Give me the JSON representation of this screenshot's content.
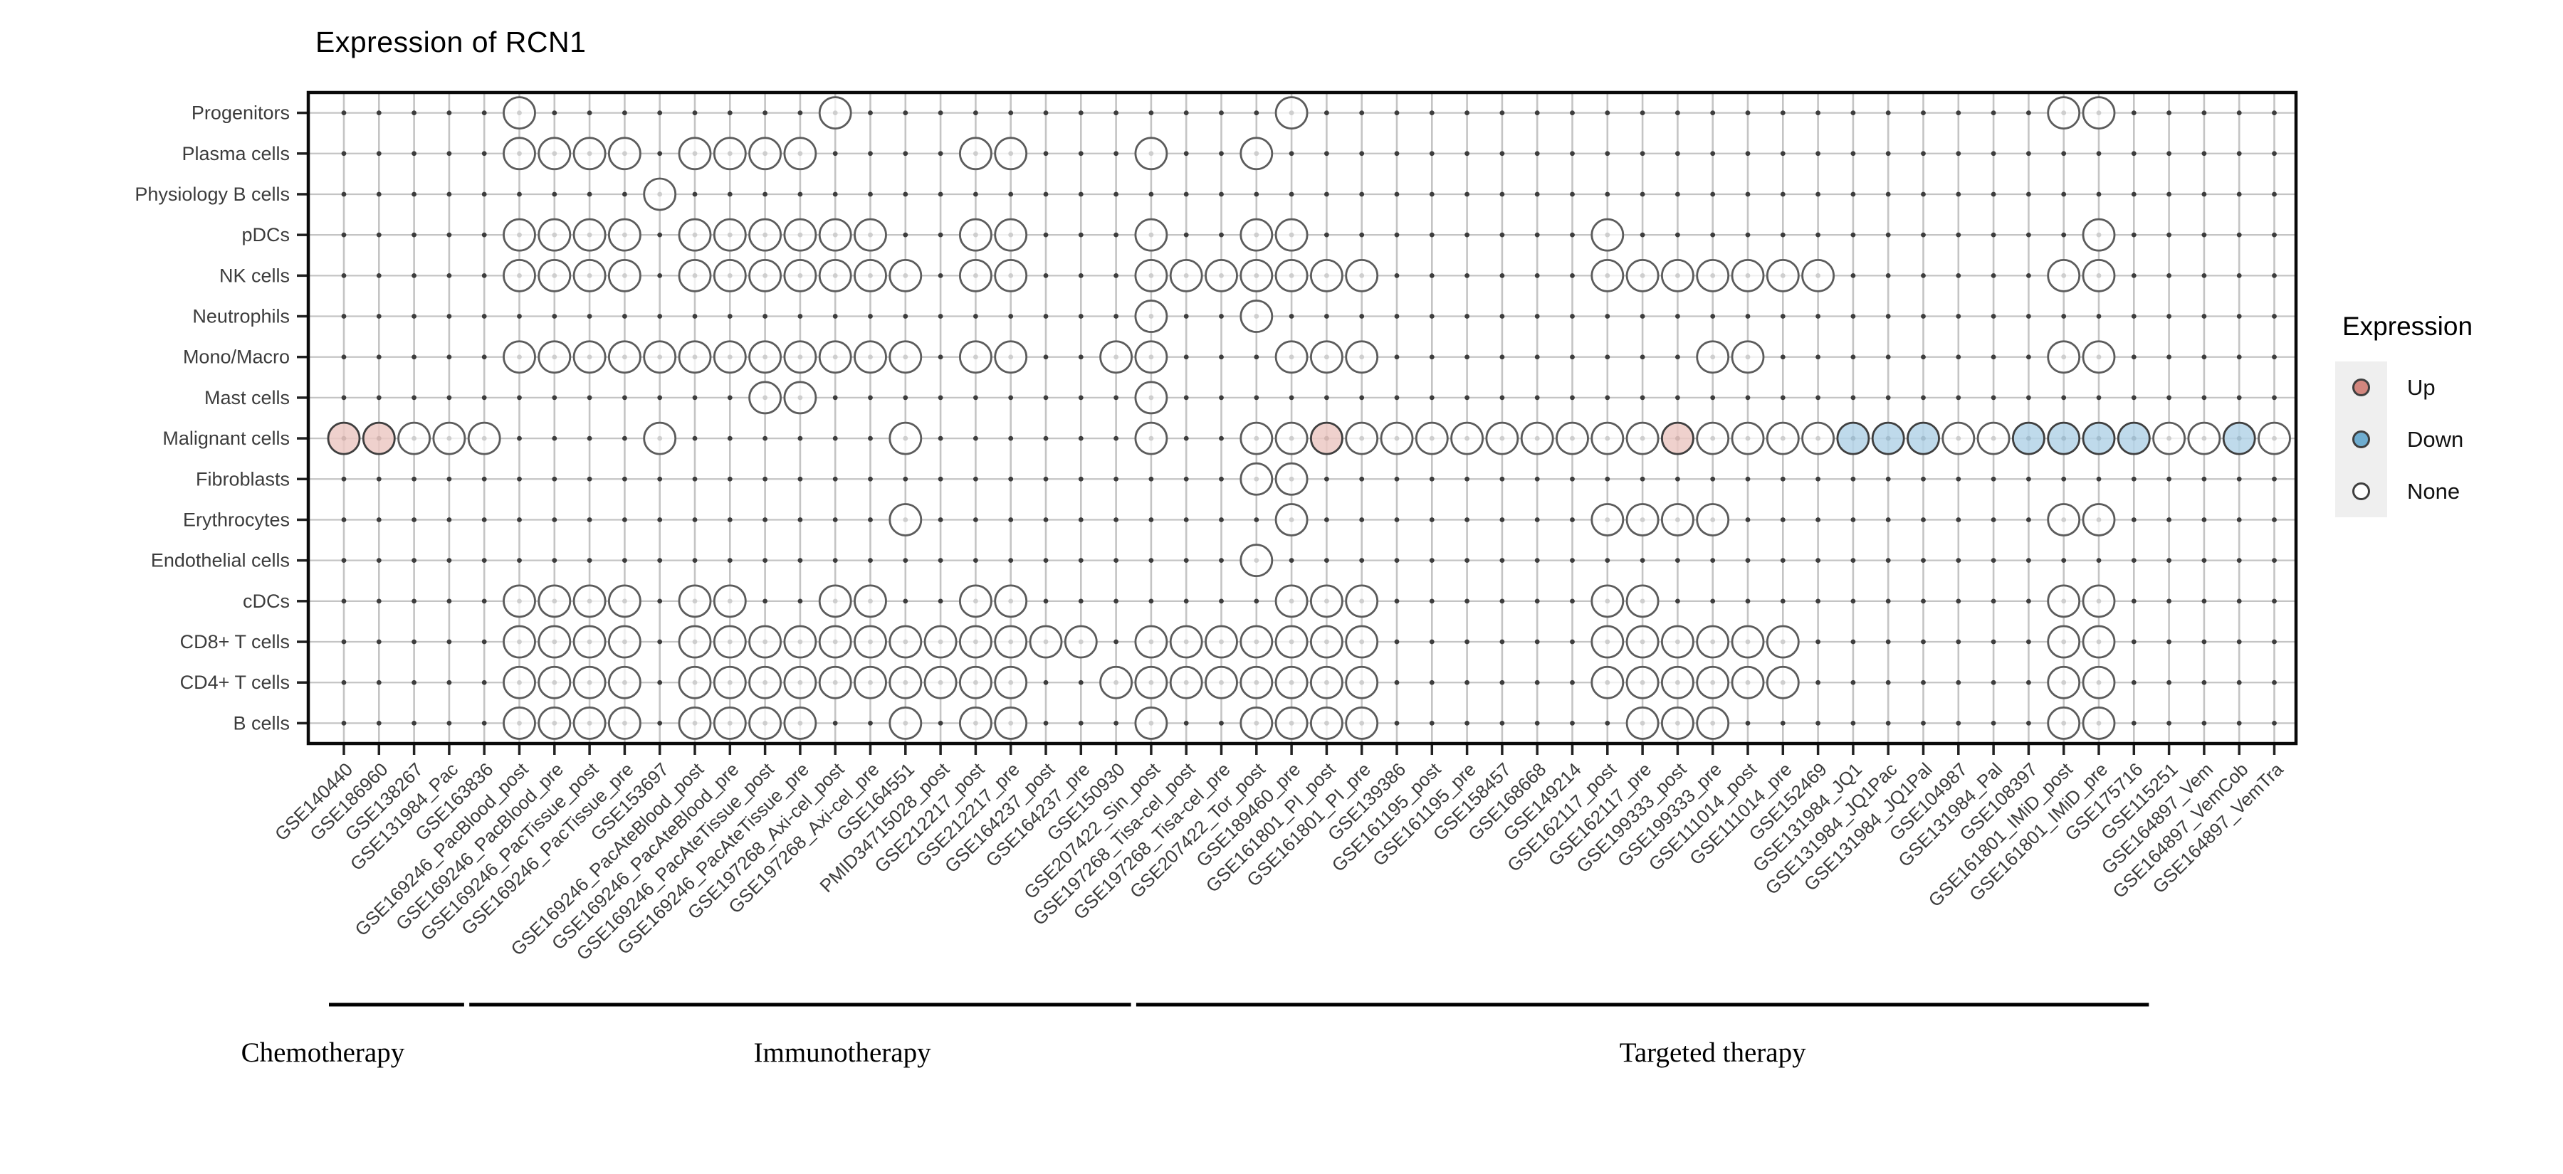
{
  "title": "Expression of RCN1",
  "legend": {
    "title": "Expression",
    "items": [
      {
        "label": "Up",
        "color": "#d2867e"
      },
      {
        "label": "Down",
        "color": "#6fadd0"
      },
      {
        "label": "None",
        "color": "#ffffff"
      }
    ]
  },
  "chart_data": {
    "type": "scatter",
    "title": "Expression of RCN1",
    "legend_position": "right",
    "x_label_rotation_deg": 45,
    "grid": "on",
    "rows": [
      "Progenitors",
      "Plasma cells",
      "Physiology B cells",
      "pDCs",
      "NK cells",
      "Neutrophils",
      "Mono/Macro",
      "Mast cells",
      "Malignant cells",
      "Fibroblasts",
      "Erythrocytes",
      "Endothelial cells",
      "cDCs",
      "CD8+ T cells",
      "CD4+ T cells",
      "B cells"
    ],
    "columns": [
      "GSE140440",
      "GSE186960",
      "GSE138267",
      "GSE131984_Pac",
      "GSE163836",
      "GSE169246_PacBlood_post",
      "GSE169246_PacBlood_pre",
      "GSE169246_PacTissue_post",
      "GSE169246_PacTissue_pre",
      "GSE153697",
      "GSE169246_PacAteBlood_post",
      "GSE169246_PacAteBlood_pre",
      "GSE169246_PacAteTissue_post",
      "GSE169246_PacAteTissue_pre",
      "GSE197268_Axi-cel_post",
      "GSE197268_Axi-cel_pre",
      "GSE164551",
      "PMID34715028_post",
      "GSE212217_post",
      "GSE212217_pre",
      "GSE164237_post",
      "GSE164237_pre",
      "GSE150930",
      "GSE207422_Sin_post",
      "GSE197268_Tisa-cel_post",
      "GSE197268_Tisa-cel_pre",
      "GSE207422_Tor_post",
      "GSE189460_pre",
      "GSE161801_PI_post",
      "GSE161801_PI_pre",
      "GSE139386",
      "GSE161195_post",
      "GSE161195_pre",
      "GSE158457",
      "GSE168668",
      "GSE149214",
      "GSE162117_post",
      "GSE162117_pre",
      "GSE199333_post",
      "GSE199333_pre",
      "GSE111014_post",
      "GSE111014_pre",
      "GSE152469",
      "GSE131984_JQ1",
      "GSE131984_JQ1Pac",
      "GSE131984_JQ1Pal",
      "GSE104987",
      "GSE131984_Pal",
      "GSE108397",
      "GSE161801_IMiD_post",
      "GSE161801_IMiD_pre",
      "GSE175716",
      "GSE115251",
      "GSE164897_Vem",
      "GSE164897_VemCob",
      "GSE164897_VemTra"
    ],
    "groups": [
      {
        "label": "Chemotherapy",
        "col_start": 1,
        "col_end": 4,
        "label_col": 0.4
      },
      {
        "label": "Immunotherapy",
        "col_start": 5,
        "col_end": 23,
        "label_col": 15.2
      },
      {
        "label": "Targeted therapy",
        "col_start": 24,
        "col_end": 52,
        "label_col": 40.0
      }
    ],
    "cells": [
      {
        "row": "Progenitors",
        "none": [
          6,
          15,
          28,
          50,
          51
        ],
        "up": [],
        "down": []
      },
      {
        "row": "Plasma cells",
        "none": [
          6,
          7,
          8,
          9,
          11,
          12,
          13,
          14,
          19,
          20,
          24,
          27
        ],
        "up": [],
        "down": []
      },
      {
        "row": "Physiology B cells",
        "none": [
          10
        ],
        "up": [],
        "down": []
      },
      {
        "row": "pDCs",
        "none": [
          6,
          7,
          8,
          9,
          11,
          12,
          13,
          14,
          15,
          16,
          19,
          20,
          24,
          27,
          28,
          37,
          51
        ],
        "up": [],
        "down": []
      },
      {
        "row": "NK cells",
        "none": [
          6,
          7,
          8,
          9,
          11,
          12,
          13,
          14,
          15,
          16,
          17,
          19,
          20,
          24,
          25,
          26,
          27,
          28,
          29,
          30,
          37,
          38,
          39,
          40,
          41,
          42,
          43,
          50,
          51
        ],
        "up": [],
        "down": []
      },
      {
        "row": "Neutrophils",
        "none": [
          24,
          27
        ],
        "up": [],
        "down": []
      },
      {
        "row": "Mono/Macro",
        "none": [
          6,
          7,
          8,
          9,
          10,
          11,
          12,
          13,
          14,
          15,
          16,
          17,
          19,
          20,
          23,
          24,
          28,
          29,
          30,
          40,
          41,
          50,
          51
        ],
        "up": [],
        "down": []
      },
      {
        "row": "Mast cells",
        "none": [
          13,
          14,
          24
        ],
        "up": [],
        "down": []
      },
      {
        "row": "Malignant cells",
        "none": [
          3,
          4,
          5,
          10,
          17,
          24,
          27,
          28,
          30,
          31,
          32,
          33,
          34,
          35,
          36,
          37,
          38,
          40,
          41,
          42,
          43,
          47,
          48,
          53,
          54,
          56
        ],
        "up": [
          1,
          2,
          29,
          39
        ],
        "down": [
          44,
          45,
          46,
          49,
          50,
          51,
          52,
          55
        ]
      },
      {
        "row": "Fibroblasts",
        "none": [
          27,
          28
        ],
        "up": [],
        "down": []
      },
      {
        "row": "Erythrocytes",
        "none": [
          17,
          28,
          37,
          38,
          39,
          40,
          50,
          51
        ],
        "up": [],
        "down": []
      },
      {
        "row": "Endothelial cells",
        "none": [
          27
        ],
        "up": [],
        "down": []
      },
      {
        "row": "cDCs",
        "none": [
          6,
          7,
          8,
          9,
          11,
          12,
          15,
          16,
          19,
          20,
          28,
          29,
          30,
          37,
          38,
          50,
          51
        ],
        "up": [],
        "down": []
      },
      {
        "row": "CD8+ T cells",
        "none": [
          6,
          7,
          8,
          9,
          11,
          12,
          13,
          14,
          15,
          16,
          17,
          18,
          19,
          20,
          21,
          22,
          24,
          25,
          26,
          27,
          28,
          29,
          30,
          37,
          38,
          39,
          40,
          41,
          42,
          50,
          51
        ],
        "up": [],
        "down": []
      },
      {
        "row": "CD4+ T cells",
        "none": [
          6,
          7,
          8,
          9,
          11,
          12,
          13,
          14,
          15,
          16,
          17,
          18,
          19,
          20,
          23,
          24,
          25,
          26,
          27,
          28,
          29,
          30,
          37,
          38,
          39,
          40,
          41,
          42,
          50,
          51
        ],
        "up": [],
        "down": []
      },
      {
        "row": "B cells",
        "none": [
          6,
          7,
          8,
          9,
          11,
          12,
          13,
          14,
          17,
          19,
          20,
          24,
          27,
          28,
          29,
          30,
          38,
          39,
          40,
          50,
          51
        ],
        "up": [],
        "down": []
      }
    ],
    "colors": {
      "up_fill": "#ecc9c4",
      "down_fill": "#b4d4e8",
      "none_fill": "#ffffff",
      "dot_stroke": "#3f3f3f",
      "none_stroke": "#5c5c5c",
      "grid_line": "#c4c4c4",
      "grid_dot": "#3d3d3d",
      "border": "#0a0a0a",
      "axis_text": "#3c3c3c"
    }
  }
}
